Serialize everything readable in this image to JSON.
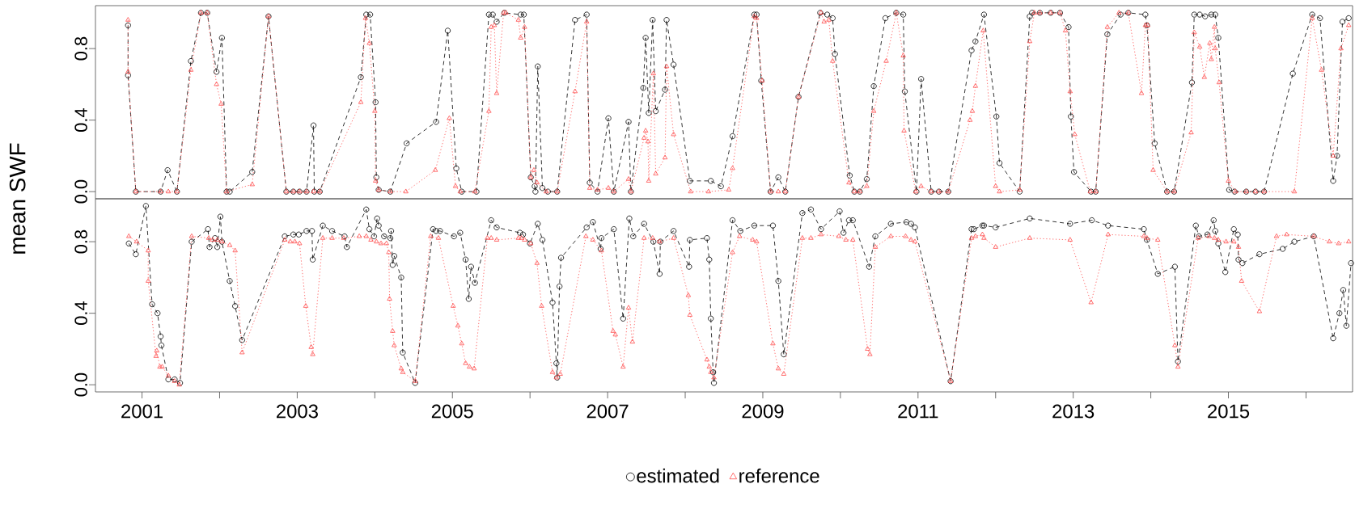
{
  "chart_data": [
    {
      "type": "line",
      "ylabel": "mean SWF",
      "xlim": [
        2000.4,
        2016.6
      ],
      "ylim": [
        -0.04,
        1.04
      ],
      "yticks": [
        {
          "value": 0,
          "label": "0.0"
        },
        {
          "value": 0.4,
          "label": "0.4"
        },
        {
          "value": 0.8,
          "label": "0.8"
        }
      ],
      "tick_labels": "y",
      "series": [
        {
          "color": "#000000",
          "marker": "circle",
          "line_style": "dashed",
          "x": [
            2000.82,
            2000.82,
            2000.92,
            2001.24,
            2001.33,
            2001.45,
            2001.63,
            2001.76,
            2001.84,
            2001.96,
            2002.03,
            2002.09,
            2002.13,
            2002.42,
            2002.63,
            2002.86,
            2002.95,
            2003.03,
            2003.12,
            2003.21,
            2003.22,
            2003.29,
            2003.82,
            2003.89,
            2003.94,
            2004.01,
            2004.02,
            2004.05,
            2004.2,
            2004.41,
            2004.79,
            2004.94,
            2005.05,
            2005.12,
            2005.31,
            2005.47,
            2005.52,
            2005.57,
            2005.67,
            2005.88,
            2005.92,
            2006.01,
            2006.06,
            2006.07,
            2006.1,
            2006.16,
            2006.23,
            2006.35,
            2006.58,
            2006.73,
            2006.77,
            2006.87,
            2007.01,
            2007.08,
            2007.27,
            2007.3,
            2007.46,
            2007.49,
            2007.53,
            2007.58,
            2007.62,
            2007.74,
            2007.76,
            2007.85,
            2008.06,
            2008.33,
            2008.46,
            2008.61,
            2008.89,
            2008.92,
            2008.98,
            2009.1,
            2009.2,
            2009.29,
            2009.46,
            2009.74,
            2009.83,
            2009.9,
            2009.93,
            2010.12,
            2010.18,
            2010.25,
            2010.34,
            2010.43,
            2010.58,
            2010.72,
            2010.81,
            2010.83,
            2010.98,
            2011.04,
            2011.17,
            2011.27,
            2011.39,
            2011.69,
            2011.74,
            2011.85,
            2012.01,
            2012.05,
            2012.31,
            2012.44,
            2012.47,
            2012.57,
            2012.71,
            2012.83,
            2012.94,
            2012.97,
            2013.01,
            2013.23,
            2013.29,
            2013.44,
            2013.61,
            2013.71,
            2013.93,
            2013.95,
            2014.05,
            2014.21,
            2014.3,
            2014.53,
            2014.56,
            2014.63,
            2014.7,
            2014.78,
            2014.83,
            2014.87,
            2015.01,
            2015.08,
            2015.23,
            2015.35,
            2015.46,
            2015.83,
            2016.08,
            2016.18,
            2016.35,
            2016.4,
            2016.47,
            2016.55
          ],
          "values": [
            0.93,
            0.65,
            0,
            0,
            0.12,
            0,
            0.73,
            1.0,
            1.0,
            0.67,
            0.86,
            0,
            0,
            0.11,
            0.98,
            0,
            0,
            0,
            0,
            0.37,
            0,
            0,
            0.64,
            0.99,
            0.99,
            0.5,
            0.08,
            0.01,
            0,
            0.27,
            0.39,
            0.9,
            0.13,
            0,
            0,
            0.99,
            0.99,
            0.95,
            1.0,
            0.99,
            0.99,
            0.08,
            0.03,
            0,
            0.7,
            0.02,
            0,
            0,
            0.96,
            0.99,
            0.05,
            0,
            0.41,
            0,
            0.39,
            0,
            0.58,
            0.86,
            0.44,
            0.96,
            0.45,
            0.57,
            0.96,
            0.71,
            0.06,
            0.06,
            0.03,
            0.31,
            0.99,
            0.99,
            0.62,
            0,
            0.08,
            0,
            0.53,
            1.0,
            0.99,
            0.97,
            0.77,
            0.09,
            0,
            0,
            0.07,
            0.59,
            0.97,
            1.0,
            0.99,
            0.56,
            0,
            0.63,
            0,
            0,
            0,
            0.79,
            0.84,
            0.99,
            0.42,
            0.16,
            0,
            0.98,
            1.0,
            1.0,
            1.0,
            1.0,
            0.92,
            0.42,
            0.11,
            0,
            0,
            0.88,
            0.99,
            1.0,
            0.99,
            0.93,
            0.27,
            0,
            0,
            0.61,
            0.99,
            0.99,
            0.98,
            0.99,
            0.99,
            0.86,
            0.01,
            0,
            0,
            0,
            0,
            0.66,
            0.99,
            0.97,
            0.06,
            0.2,
            0.95,
            0.97
          ]
        },
        {
          "color": "#ff4d4d",
          "marker": "triangle",
          "line_style": "dotted",
          "x": [
            2000.82,
            2000.82,
            2000.92,
            2001.24,
            2001.34,
            2001.45,
            2001.63,
            2001.76,
            2001.84,
            2001.96,
            2002.02,
            2002.09,
            2002.42,
            2002.63,
            2002.86,
            2002.95,
            2003.03,
            2003.12,
            2003.21,
            2003.29,
            2003.82,
            2003.88,
            2003.93,
            2004.0,
            2004.01,
            2004.05,
            2004.2,
            2004.4,
            2004.78,
            2004.96,
            2005.04,
            2005.1,
            2005.29,
            2005.47,
            2005.5,
            2005.54,
            2005.57,
            2005.66,
            2005.69,
            2005.85,
            2005.88,
            2005.93,
            2006.01,
            2006.05,
            2006.09,
            2006.21,
            2006.35,
            2006.58,
            2006.73,
            2006.77,
            2006.87,
            2007.01,
            2007.08,
            2007.27,
            2007.3,
            2007.47,
            2007.49,
            2007.52,
            2007.53,
            2007.59,
            2007.62,
            2007.74,
            2007.76,
            2007.85,
            2008.07,
            2008.3,
            2008.56,
            2008.61,
            2008.89,
            2008.92,
            2008.99,
            2009.1,
            2009.2,
            2009.29,
            2009.46,
            2009.75,
            2009.79,
            2009.85,
            2009.9,
            2010.11,
            2010.18,
            2010.25,
            2010.34,
            2010.43,
            2010.59,
            2010.72,
            2010.81,
            2010.82,
            2010.97,
            2011.04,
            2011.17,
            2011.27,
            2011.39,
            2011.67,
            2011.7,
            2011.74,
            2011.84,
            2012.0,
            2012.05,
            2012.31,
            2012.44,
            2012.5,
            2012.57,
            2012.71,
            2012.83,
            2012.9,
            2012.96,
            2013.02,
            2013.22,
            2013.29,
            2013.44,
            2013.59,
            2013.71,
            2013.88,
            2013.93,
            2013.96,
            2014.03,
            2014.21,
            2014.3,
            2014.52,
            2014.56,
            2014.63,
            2014.69,
            2014.76,
            2014.78,
            2014.82,
            2014.83,
            2014.88,
            2015.0,
            2015.09,
            2015.23,
            2015.35,
            2015.46,
            2015.85,
            2016.08,
            2016.2,
            2016.35,
            2016.45,
            2016.55
          ],
          "values": [
            0.96,
            0.67,
            0,
            0,
            0,
            0,
            0.68,
            1.0,
            1.0,
            0.6,
            0.49,
            0,
            0.04,
            0.98,
            0,
            0,
            0,
            0,
            0,
            0,
            0.5,
            0.97,
            0.83,
            0.45,
            0.06,
            0.01,
            0,
            0,
            0.12,
            0.41,
            0.03,
            0,
            0,
            0.45,
            0.92,
            0.93,
            0.55,
            1.0,
            1.0,
            0.96,
            0.86,
            0.92,
            0.08,
            0.12,
            0.05,
            0,
            0,
            0.56,
            0.95,
            0.02,
            0.01,
            0.02,
            0,
            0.07,
            0,
            0.3,
            0.34,
            0.28,
            0.06,
            0.66,
            0.1,
            0.19,
            0.7,
            0.32,
            0,
            0,
            0.01,
            0.13,
            0.98,
            0.97,
            0.62,
            0,
            0,
            0,
            0.53,
            1.0,
            0.95,
            0.96,
            0.73,
            0.05,
            0,
            0,
            0.03,
            0.45,
            0.73,
            1.0,
            0.76,
            0.34,
            0,
            0.03,
            0,
            0,
            0,
            0.4,
            0.45,
            0.59,
            0.9,
            0.03,
            0,
            0.01,
            0.84,
            1.0,
            1.0,
            1.0,
            1.0,
            0.9,
            0.56,
            0.32,
            0,
            0,
            0.92,
            1.0,
            1.0,
            0.55,
            0.93,
            0.93,
            0.12,
            0,
            0,
            0.33,
            0.89,
            0.81,
            0.64,
            0.83,
            0.74,
            0.92,
            0.8,
            0.61,
            0.06,
            0,
            0,
            0,
            0,
            0,
            0.97,
            0.68,
            0.2,
            0.8,
            0.93
          ]
        }
      ]
    },
    {
      "type": "line",
      "xlim": [
        2000.4,
        2016.6
      ],
      "ylim": [
        -0.04,
        1.04
      ],
      "yticks": [
        {
          "value": 0,
          "label": "0.0"
        },
        {
          "value": 0.4,
          "label": "0.4"
        },
        {
          "value": 0.8,
          "label": "0.8"
        }
      ],
      "xticks": [
        2001,
        {
          "value": 2002,
          "label": null
        },
        2003,
        {
          "value": 2004,
          "label": null
        },
        2005,
        {
          "value": 2006,
          "label": null
        },
        2007,
        {
          "value": 2008,
          "label": null
        },
        2009,
        {
          "value": 2010,
          "label": null
        },
        2011,
        {
          "value": 2012,
          "label": null
        },
        2013,
        {
          "value": 2014,
          "label": null
        },
        2015,
        {
          "value": 2016,
          "label": null
        }
      ],
      "legend": "bottom",
      "series": [
        {
          "name": "estimated",
          "color": "#000000",
          "marker": "circle",
          "line_style": "dashed",
          "x": [
            2000.83,
            2000.92,
            2001.05,
            2001.13,
            2001.2,
            2001.24,
            2001.25,
            2001.34,
            2001.42,
            2001.49,
            2001.64,
            2001.85,
            2001.87,
            2001.94,
            2001.97,
            2002.01,
            2002.03,
            2002.13,
            2002.2,
            2002.29,
            2002.84,
            2002.95,
            2003.02,
            2003.12,
            2003.19,
            2003.2,
            2003.33,
            2003.45,
            2003.61,
            2003.64,
            2003.89,
            2003.93,
            2003.99,
            2004.03,
            2004.05,
            2004.12,
            2004.2,
            2004.21,
            2004.23,
            2004.25,
            2004.34,
            2004.36,
            2004.52,
            2004.75,
            2004.79,
            2004.84,
            2005.02,
            2005.1,
            2005.17,
            2005.21,
            2005.24,
            2005.29,
            2005.5,
            2005.57,
            2005.87,
            2005.91,
            2006.0,
            2006.1,
            2006.16,
            2006.29,
            2006.34,
            2006.35,
            2006.38,
            2006.4,
            2006.73,
            2006.81,
            2006.91,
            2006.92,
            2007.08,
            2007.2,
            2007.28,
            2007.33,
            2007.47,
            2007.59,
            2007.67,
            2007.68,
            2007.85,
            2008.05,
            2008.06,
            2008.28,
            2008.31,
            2008.33,
            2008.36,
            2008.37,
            2008.61,
            2008.71,
            2008.89,
            2009.13,
            2009.2,
            2009.27,
            2009.51,
            2009.62,
            2009.75,
            2009.99,
            2010.04,
            2010.11,
            2010.16,
            2010.37,
            2010.45,
            2010.65,
            2010.85,
            2010.91,
            2010.96,
            2011.42,
            2011.69,
            2011.72,
            2011.83,
            2011.85,
            2012.0,
            2012.44,
            2012.96,
            2013.24,
            2013.45,
            2013.91,
            2013.95,
            2014.09,
            2014.31,
            2014.35,
            2014.58,
            2014.62,
            2014.73,
            2014.81,
            2014.83,
            2014.87,
            2014.96,
            2015.07,
            2015.12,
            2015.13,
            2015.18,
            2015.4,
            2015.7,
            2015.85,
            2016.1,
            2016.35,
            2016.43,
            2016.48,
            2016.52,
            2016.58
          ],
          "values": [
            0.79,
            0.73,
            1.0,
            0.45,
            0.4,
            0.27,
            0.22,
            0.03,
            0.03,
            0.01,
            0.8,
            0.87,
            0.77,
            0.82,
            0.77,
            0.94,
            0.8,
            0.58,
            0.44,
            0.25,
            0.83,
            0.84,
            0.84,
            0.86,
            0.86,
            0.7,
            0.89,
            0.86,
            0.83,
            0.77,
            0.98,
            0.87,
            0.83,
            0.93,
            0.89,
            0.83,
            0.82,
            0.86,
            0.67,
            0.72,
            0.6,
            0.18,
            0.01,
            0.87,
            0.86,
            0.86,
            0.83,
            0.85,
            0.7,
            0.48,
            0.66,
            0.57,
            0.92,
            0.88,
            0.85,
            0.84,
            0.79,
            0.9,
            0.81,
            0.46,
            0.12,
            0.04,
            0.55,
            0.71,
            0.88,
            0.91,
            0.76,
            0.82,
            0.87,
            0.37,
            0.93,
            0.83,
            0.9,
            0.8,
            0.62,
            0.8,
            0.86,
            0.66,
            0.81,
            0.82,
            0.7,
            0.37,
            0.07,
            0.01,
            0.92,
            0.86,
            0.89,
            0.89,
            0.58,
            0.17,
            0.96,
            0.98,
            0.87,
            0.97,
            0.85,
            0.92,
            0.92,
            0.66,
            0.83,
            0.9,
            0.91,
            0.9,
            0.88,
            0.02,
            0.87,
            0.87,
            0.89,
            0.89,
            0.88,
            0.93,
            0.9,
            0.92,
            0.89,
            0.87,
            0.81,
            0.62,
            0.66,
            0.13,
            0.89,
            0.83,
            0.84,
            0.92,
            0.86,
            0.79,
            0.63,
            0.87,
            0.84,
            0.7,
            0.68,
            0.73,
            0.76,
            0.8,
            0.83,
            0.26,
            0.4,
            0.53,
            0.33,
            0.68
          ]
        },
        {
          "name": "reference",
          "color": "#ff4d4d",
          "marker": "triangle",
          "line_style": "dotted",
          "x": [
            2000.83,
            2000.93,
            2001.08,
            2001.08,
            2001.18,
            2001.19,
            2001.23,
            2001.26,
            2001.34,
            2001.42,
            2001.48,
            2001.64,
            2001.86,
            2001.91,
            2001.97,
            2002.03,
            2002.13,
            2002.2,
            2002.29,
            2002.84,
            2002.91,
            2002.97,
            2003.03,
            2003.11,
            2003.18,
            2003.2,
            2003.33,
            2003.45,
            2003.6,
            2003.8,
            2003.89,
            2003.95,
            2004.02,
            2004.08,
            2004.15,
            2004.18,
            2004.19,
            2004.23,
            2004.25,
            2004.34,
            2004.36,
            2004.52,
            2004.72,
            2004.82,
            2005.01,
            2005.07,
            2005.12,
            2005.17,
            2005.22,
            2005.28,
            2005.45,
            2005.5,
            2005.57,
            2005.85,
            2005.89,
            2005.93,
            2006.01,
            2006.09,
            2006.15,
            2006.29,
            2006.34,
            2006.39,
            2006.72,
            2006.81,
            2006.92,
            2007.07,
            2007.1,
            2007.2,
            2007.27,
            2007.32,
            2007.47,
            2007.58,
            2007.67,
            2007.85,
            2008.04,
            2008.06,
            2008.28,
            2008.31,
            2008.33,
            2008.37,
            2008.61,
            2008.7,
            2008.87,
            2008.92,
            2009.13,
            2009.2,
            2009.27,
            2009.51,
            2009.62,
            2009.75,
            2009.98,
            2010.07,
            2010.16,
            2010.35,
            2010.38,
            2010.45,
            2010.65,
            2010.84,
            2010.91,
            2010.96,
            2011.42,
            2011.69,
            2011.74,
            2011.83,
            2011.85,
            2012.0,
            2012.44,
            2012.96,
            2013.23,
            2013.45,
            2013.91,
            2013.95,
            2014.09,
            2014.31,
            2014.35,
            2014.61,
            2014.75,
            2014.82,
            2014.87,
            2014.97,
            2015.07,
            2015.13,
            2015.17,
            2015.4,
            2015.62,
            2015.75,
            2016.1,
            2016.3,
            2016.42,
            2016.55
          ],
          "values": [
            0.83,
            0.8,
            0.75,
            0.58,
            0.16,
            0.19,
            0.1,
            0.1,
            0.05,
            0.02,
            0,
            0.83,
            0.82,
            0.81,
            0.81,
            0.8,
            0.78,
            0.75,
            0.18,
            0.81,
            0.8,
            0.8,
            0.79,
            0.44,
            0.21,
            0.17,
            0.82,
            0.82,
            0.82,
            0.83,
            0.83,
            0.81,
            0.8,
            0.79,
            0.79,
            0.74,
            0.48,
            0.3,
            0.22,
            0.09,
            0.07,
            0.02,
            0.83,
            0.82,
            0.44,
            0.33,
            0.23,
            0.12,
            0.1,
            0.09,
            0.82,
            0.82,
            0.81,
            0.82,
            0.82,
            0.81,
            0.79,
            0.68,
            0.44,
            0.07,
            0.04,
            0.06,
            0.83,
            0.81,
            0.75,
            0.3,
            0.28,
            0.1,
            0.43,
            0.24,
            0.82,
            0.82,
            0.8,
            0.82,
            0.5,
            0.39,
            0.14,
            0.1,
            0.07,
            0.04,
            0.74,
            0.83,
            0.81,
            0.8,
            0.23,
            0.09,
            0.06,
            0.82,
            0.82,
            0.84,
            0.83,
            0.81,
            0.81,
            0.2,
            0.17,
            0.77,
            0.83,
            0.83,
            0.81,
            0.8,
            0.02,
            0.82,
            0.83,
            0.84,
            0.82,
            0.77,
            0.82,
            0.81,
            0.46,
            0.84,
            0.83,
            0.82,
            0.81,
            0.22,
            0.1,
            0.82,
            0.83,
            0.82,
            0.81,
            0.8,
            0.8,
            0.77,
            0.58,
            0.41,
            0.83,
            0.84,
            0.83,
            0.8,
            0.79,
            0.8
          ]
        }
      ]
    }
  ]
}
